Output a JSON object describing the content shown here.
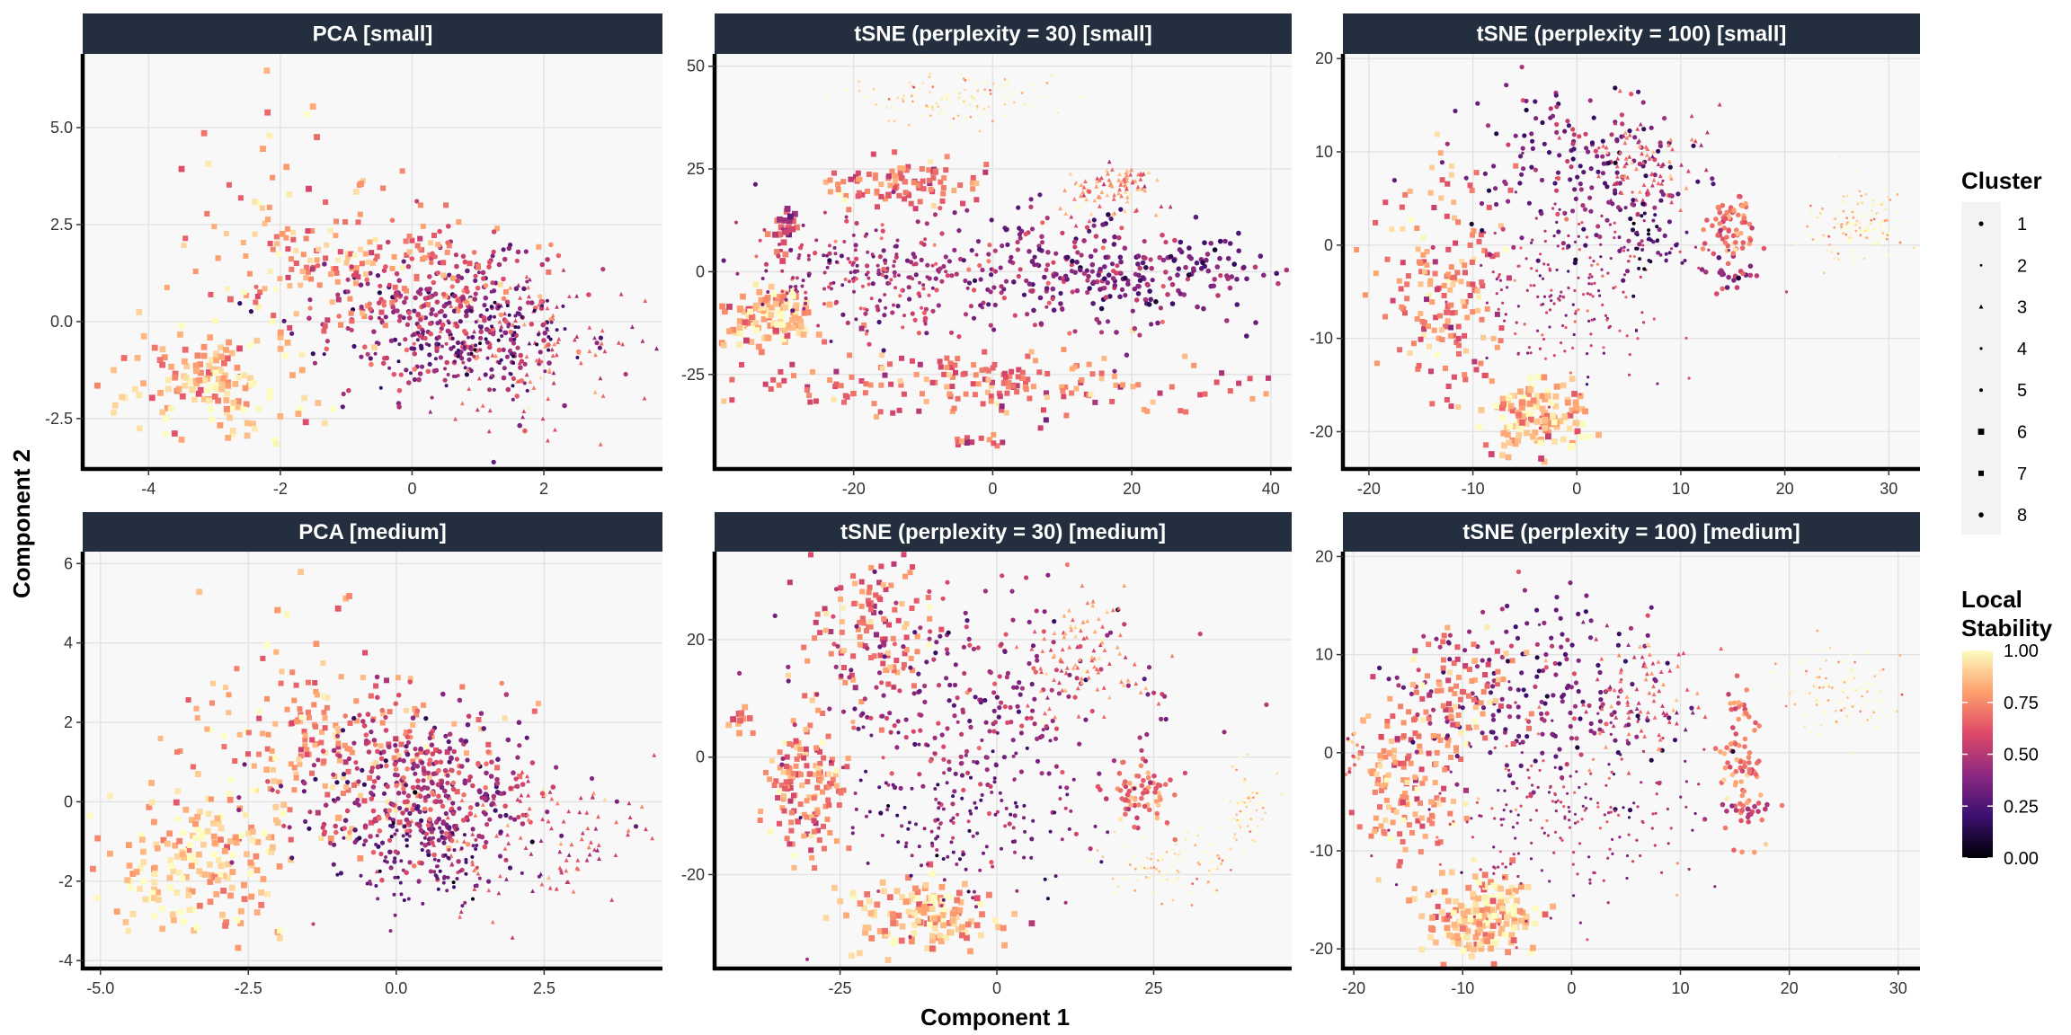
{
  "chart_data": {
    "type": "scatter",
    "xlabel": "Component 1",
    "ylabel": "Component 2",
    "colors": {
      "strip_bg": "#232f3e",
      "panel_bg": "#f8f8f8",
      "grid": "#e2e2e2",
      "gradient": [
        "#000004",
        "#3b0f70",
        "#8c2981",
        "#de4968",
        "#fe9f6d",
        "#fcfdbf"
      ]
    },
    "legend_cluster": {
      "title": "Cluster",
      "items": [
        "1",
        "2",
        "3",
        "4",
        "5",
        "6",
        "7",
        "8"
      ]
    },
    "legend_stability": {
      "title_lines": [
        "Local",
        "Stability"
      ],
      "range": [
        0,
        1
      ],
      "ticks": [
        "1.00",
        "0.75",
        "0.50",
        "0.25",
        "0.00"
      ],
      "tick_values": [
        1.0,
        0.75,
        0.5,
        0.25,
        0.0
      ]
    },
    "panels": [
      {
        "title": "PCA [small]",
        "xlim": [
          -5.0,
          3.8
        ],
        "ylim": [
          -3.8,
          6.9
        ],
        "xticks": [
          -4,
          -2,
          0,
          2
        ],
        "xtick_labels": [
          "-4",
          "-2",
          "0",
          "2"
        ],
        "yticks": [
          -2.5,
          0,
          2.5,
          5
        ],
        "ytick_labels": [
          "-2.5",
          "0.0",
          "2.5",
          "5.0"
        ],
        "clusters": [
          {
            "cluster": 1,
            "cx": 0.3,
            "cy": 0.0,
            "sx": 1.0,
            "sy": 1.0,
            "stability": 0.4,
            "n": 180
          },
          {
            "cluster": 3,
            "cx": 2.0,
            "cy": -0.8,
            "sx": 0.9,
            "sy": 0.9,
            "stability": 0.6,
            "n": 110
          },
          {
            "cluster": 6,
            "cx": -3.0,
            "cy": -1.6,
            "sx": 0.75,
            "sy": 0.8,
            "stability": 0.88,
            "n": 160
          },
          {
            "cluster": 7,
            "cx": -1.0,
            "cy": 1.6,
            "sx": 1.2,
            "sy": 0.9,
            "stability": 0.78,
            "n": 170
          },
          {
            "cluster": 8,
            "cx": 0.6,
            "cy": 0.3,
            "sx": 0.8,
            "sy": 0.9,
            "stability": 0.55,
            "n": 200
          },
          {
            "cluster": 5,
            "cx": 1.0,
            "cy": -0.5,
            "sx": 0.7,
            "sy": 0.7,
            "stability": 0.3,
            "n": 120
          },
          {
            "cluster": 6,
            "cx": -2.2,
            "cy": 4.5,
            "sx": 0.8,
            "sy": 0.9,
            "stability": 0.8,
            "n": 18
          }
        ]
      },
      {
        "title": "tSNE (perplexity = 30) [small]",
        "xlim": [
          -40,
          43
        ],
        "ylim": [
          -48,
          53
        ],
        "xticks": [
          -20,
          0,
          20,
          40
        ],
        "xtick_labels": [
          "-20",
          "0",
          "20",
          "40"
        ],
        "yticks": [
          -25,
          0,
          25,
          50
        ],
        "ytick_labels": [
          "-25",
          "0",
          "25",
          "50"
        ],
        "clusters": [
          {
            "cluster": 2,
            "cx": -5,
            "cy": 42,
            "sx": 7,
            "sy": 3,
            "stability": 0.96,
            "n": 110
          },
          {
            "cluster": 6,
            "cx": -32,
            "cy": -11,
            "sx": 3.5,
            "sy": 4,
            "stability": 0.85,
            "n": 120
          },
          {
            "cluster": 7,
            "cx": -13,
            "cy": 22,
            "sx": 5,
            "sy": 3,
            "stability": 0.7,
            "n": 100
          },
          {
            "cluster": 6,
            "cx": -30,
            "cy": 10,
            "sx": 1.2,
            "sy": 3,
            "stability": 0.55,
            "n": 25
          },
          {
            "cluster": 7,
            "cx": 0,
            "cy": -27,
            "sx": 18,
            "sy": 4,
            "stability": 0.7,
            "n": 200
          },
          {
            "cluster": 3,
            "cx": 17,
            "cy": 20,
            "sx": 4,
            "sy": 4,
            "stability": 0.75,
            "n": 90
          },
          {
            "cluster": 1,
            "cx": 0,
            "cy": 0,
            "sx": 14,
            "sy": 8,
            "stability": 0.45,
            "n": 250
          },
          {
            "cluster": 8,
            "cx": 22,
            "cy": 0,
            "sx": 10,
            "sy": 6,
            "stability": 0.35,
            "n": 180
          },
          {
            "cluster": 5,
            "cx": -20,
            "cy": 0,
            "sx": 9,
            "sy": 6,
            "stability": 0.5,
            "n": 150
          },
          {
            "cluster": 7,
            "cx": -2,
            "cy": -41,
            "sx": 1.5,
            "sy": 1,
            "stability": 0.7,
            "n": 15
          }
        ]
      },
      {
        "title": "tSNE (perplexity = 100) [small]",
        "xlim": [
          -22.5,
          33
        ],
        "ylim": [
          -24,
          20.5
        ],
        "xticks": [
          -20,
          -10,
          0,
          10,
          20,
          30
        ],
        "xtick_labels": [
          "-20",
          "-10",
          "0",
          "10",
          "20",
          "30"
        ],
        "yticks": [
          -20,
          -10,
          0,
          10,
          20
        ],
        "ytick_labels": [
          "-20",
          "-10",
          "0",
          "10",
          "20"
        ],
        "clusters": [
          {
            "cluster": 2,
            "cx": 27,
            "cy": 2,
            "sx": 2.5,
            "sy": 2,
            "stability": 0.95,
            "n": 130
          },
          {
            "cluster": 6,
            "cx": -4,
            "cy": -18.5,
            "sx": 2.2,
            "sy": 1.8,
            "stability": 0.88,
            "n": 140
          },
          {
            "cluster": 8,
            "cx": 15,
            "cy": 2,
            "sx": 1.2,
            "sy": 1.5,
            "stability": 0.7,
            "n": 70
          },
          {
            "cluster": 7,
            "cx": -13,
            "cy": -4,
            "sx": 3,
            "sy": 6,
            "stability": 0.75,
            "n": 180
          },
          {
            "cluster": 1,
            "cx": 0,
            "cy": 8,
            "sx": 6,
            "sy": 5,
            "stability": 0.35,
            "n": 200
          },
          {
            "cluster": 4,
            "cx": 0,
            "cy": -5,
            "sx": 5,
            "sy": 5,
            "stability": 0.5,
            "n": 200
          },
          {
            "cluster": 3,
            "cx": 6,
            "cy": 9,
            "sx": 3,
            "sy": 3,
            "stability": 0.65,
            "n": 80
          },
          {
            "cluster": 5,
            "cx": 7,
            "cy": 0,
            "sx": 1.5,
            "sy": 2,
            "stability": 0.2,
            "n": 40
          },
          {
            "cluster": 8,
            "cx": 15,
            "cy": -3.5,
            "sx": 1.5,
            "sy": 0.8,
            "stability": 0.45,
            "n": 25
          }
        ]
      },
      {
        "title": "PCA [medium]",
        "xlim": [
          -5.3,
          4.5
        ],
        "ylim": [
          -4.2,
          6.3
        ],
        "xticks": [
          -5,
          -2.5,
          0,
          2.5
        ],
        "xtick_labels": [
          "-5.0",
          "-2.5",
          "0.0",
          "2.5"
        ],
        "yticks": [
          -4,
          -2,
          0,
          2,
          4,
          6
        ],
        "ytick_labels": [
          "-4",
          "-2",
          "0",
          "2",
          "4",
          "6"
        ],
        "clusters": [
          {
            "cluster": 6,
            "cx": -3.2,
            "cy": -1.5,
            "sx": 0.9,
            "sy": 0.9,
            "stability": 0.88,
            "n": 200
          },
          {
            "cluster": 7,
            "cx": -1.0,
            "cy": 1.5,
            "sx": 1.3,
            "sy": 1.0,
            "stability": 0.78,
            "n": 200
          },
          {
            "cluster": 1,
            "cx": 0.3,
            "cy": 0.0,
            "sx": 1.1,
            "sy": 1.0,
            "stability": 0.4,
            "n": 220
          },
          {
            "cluster": 3,
            "cx": 2.5,
            "cy": -1.0,
            "sx": 1.0,
            "sy": 1.0,
            "stability": 0.6,
            "n": 120
          },
          {
            "cluster": 8,
            "cx": 0.5,
            "cy": 0.5,
            "sx": 0.9,
            "sy": 1.0,
            "stability": 0.55,
            "n": 220
          },
          {
            "cluster": 5,
            "cx": 0.5,
            "cy": -1.5,
            "sx": 0.7,
            "sy": 0.6,
            "stability": 0.3,
            "n": 100
          },
          {
            "cluster": 6,
            "cx": -1.8,
            "cy": 5.0,
            "sx": 0.7,
            "sy": 0.6,
            "stability": 0.8,
            "n": 12
          }
        ]
      },
      {
        "title": "tSNE (perplexity = 30) [medium]",
        "xlim": [
          -45,
          47
        ],
        "ylim": [
          -36,
          35
        ],
        "xticks": [
          -25,
          0,
          25
        ],
        "xtick_labels": [
          "-25",
          "0",
          "25"
        ],
        "yticks": [
          -20,
          0,
          20
        ],
        "ytick_labels": [
          "-20",
          "0",
          "20"
        ],
        "clusters": [
          {
            "cluster": 6,
            "cx": -12,
            "cy": -27,
            "sx": 6,
            "sy": 3,
            "stability": 0.85,
            "n": 150
          },
          {
            "cluster": 7,
            "cx": -31,
            "cy": -5,
            "sx": 3,
            "sy": 6,
            "stability": 0.75,
            "n": 150
          },
          {
            "cluster": 2,
            "cx": 28,
            "cy": -18,
            "sx": 5,
            "sy": 3,
            "stability": 0.95,
            "n": 100
          },
          {
            "cluster": 2,
            "cx": 40,
            "cy": -8,
            "sx": 2,
            "sy": 3,
            "stability": 0.95,
            "n": 60
          },
          {
            "cluster": 8,
            "cx": 23,
            "cy": -6,
            "sx": 2.5,
            "sy": 2.5,
            "stability": 0.7,
            "n": 70
          },
          {
            "cluster": 7,
            "cx": -20,
            "cy": 22,
            "sx": 5,
            "sy": 6,
            "stability": 0.7,
            "n": 120
          },
          {
            "cluster": 1,
            "cx": -3,
            "cy": 10,
            "sx": 13,
            "sy": 10,
            "stability": 0.45,
            "n": 280
          },
          {
            "cluster": 3,
            "cx": 14,
            "cy": 18,
            "sx": 5,
            "sy": 5,
            "stability": 0.75,
            "n": 100
          },
          {
            "cluster": 5,
            "cx": -5,
            "cy": -10,
            "sx": 10,
            "sy": 7,
            "stability": 0.35,
            "n": 160
          },
          {
            "cluster": 6,
            "cx": -41,
            "cy": 7,
            "sx": 1,
            "sy": 2,
            "stability": 0.7,
            "n": 12
          }
        ]
      },
      {
        "title": "tSNE (perplexity = 100) [medium]",
        "xlim": [
          -21,
          32
        ],
        "ylim": [
          -22,
          20.5
        ],
        "xticks": [
          -20,
          -10,
          0,
          10,
          20,
          30
        ],
        "xtick_labels": [
          "-20",
          "-10",
          "0",
          "10",
          "20",
          "30"
        ],
        "yticks": [
          -20,
          -10,
          0,
          10,
          20
        ],
        "ytick_labels": [
          "-20",
          "-10",
          "0",
          "10",
          "20"
        ],
        "clusters": [
          {
            "cluster": 2,
            "cx": 25,
            "cy": 6,
            "sx": 3,
            "sy": 2,
            "stability": 0.96,
            "n": 110
          },
          {
            "cluster": 6,
            "cx": -8,
            "cy": -17,
            "sx": 2.5,
            "sy": 2,
            "stability": 0.88,
            "n": 180
          },
          {
            "cluster": 7,
            "cx": -15,
            "cy": -3,
            "sx": 2.5,
            "sy": 4,
            "stability": 0.78,
            "n": 160
          },
          {
            "cluster": 8,
            "cx": 15.5,
            "cy": -1,
            "sx": 1,
            "sy": 4,
            "stability": 0.7,
            "n": 80
          },
          {
            "cluster": 1,
            "cx": -3,
            "cy": 6,
            "sx": 6,
            "sy": 5,
            "stability": 0.35,
            "n": 220
          },
          {
            "cluster": 4,
            "cx": 0,
            "cy": -6,
            "sx": 6,
            "sy": 5,
            "stability": 0.5,
            "n": 220
          },
          {
            "cluster": 3,
            "cx": 6,
            "cy": 6,
            "sx": 3,
            "sy": 3,
            "stability": 0.65,
            "n": 90
          },
          {
            "cluster": 7,
            "cx": -10,
            "cy": 6,
            "sx": 2.5,
            "sy": 3,
            "stability": 0.75,
            "n": 80
          },
          {
            "cluster": 8,
            "cx": 16,
            "cy": -6,
            "sx": 1,
            "sy": 0.5,
            "stability": 0.55,
            "n": 20
          },
          {
            "cluster": 5,
            "cx": -20,
            "cy": 0,
            "sx": 0.5,
            "sy": 1.5,
            "stability": 0.7,
            "n": 15
          }
        ]
      }
    ]
  }
}
